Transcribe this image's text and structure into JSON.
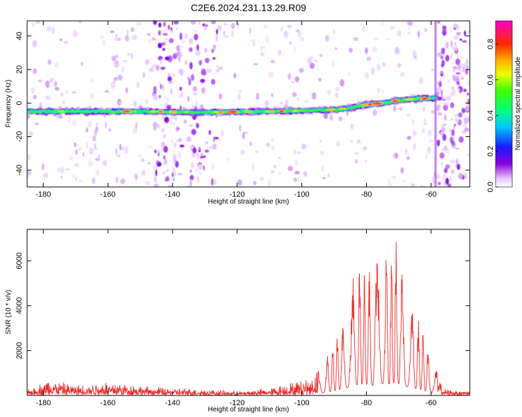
{
  "figure_title": "C2E6.2024.231.13.29.R09",
  "chart_data": [
    {
      "type": "heatmap",
      "title": "",
      "xlabel": "Height of straight line (km)",
      "ylabel": "Frequency (Hz)",
      "xlim": [
        -185,
        -48
      ],
      "ylim": [
        -50,
        49
      ],
      "x_ticks": [
        -180,
        -160,
        -140,
        -120,
        -100,
        -80,
        -60
      ],
      "y_ticks": [
        -40,
        -20,
        0,
        20,
        40
      ],
      "colorbar": {
        "label": "Normalized spectral amplitude",
        "range": [
          0,
          0.93
        ],
        "ticks": [
          0.0,
          0.2,
          0.4,
          0.6,
          0.8
        ]
      },
      "ridge": {
        "x": [
          -185,
          -170,
          -150,
          -130,
          -110,
          -100,
          -90,
          -85,
          -80,
          -75,
          -70,
          -65,
          -60,
          -58
        ],
        "frequency": [
          -5,
          -5,
          -5,
          -5.5,
          -5,
          -4.5,
          -4,
          -3,
          -1,
          0,
          1.5,
          2.5,
          3,
          3
        ],
        "peak_amplitude": 0.9
      },
      "noise_bands": [
        {
          "from": -146,
          "to": -137,
          "level": "high"
        },
        {
          "from": -135,
          "to": -126,
          "level": "high"
        },
        {
          "from": -158,
          "to": -155,
          "level": "medium"
        },
        {
          "from": -58,
          "to": -48,
          "level": "high"
        }
      ]
    },
    {
      "type": "line",
      "title": "",
      "xlabel": "Height of straight line (km)",
      "ylabel": "SNR (10 * v/v)",
      "xlim": [
        -185,
        -48
      ],
      "ylim": [
        0,
        7400
      ],
      "x_ticks": [
        -180,
        -160,
        -140,
        -120,
        -100,
        -80,
        -60
      ],
      "y_ticks": [
        2000,
        4000,
        6000
      ],
      "series": [
        {
          "color": "#ee2a2a",
          "envelope": {
            "x": [
              -185,
              -178,
              -170,
              -160,
              -150,
              -140,
              -130,
              -120,
              -110,
              -102,
              -97,
              -93,
              -90,
              -87,
              -84,
              -82,
              -80,
              -78,
              -76,
              -73,
              -71,
              -69,
              -66,
              -63,
              -60,
              -58,
              -56,
              -50,
              -48
            ],
            "peak": [
              250,
              800,
              500,
              700,
              450,
              350,
              300,
              200,
              350,
              650,
              900,
              1500,
              2500,
              3800,
              5400,
              6500,
              6200,
              5600,
              6600,
              6400,
              7400,
              5500,
              4300,
              3300,
              1700,
              1100,
              300,
              250,
              280
            ]
          }
        }
      ]
    }
  ]
}
